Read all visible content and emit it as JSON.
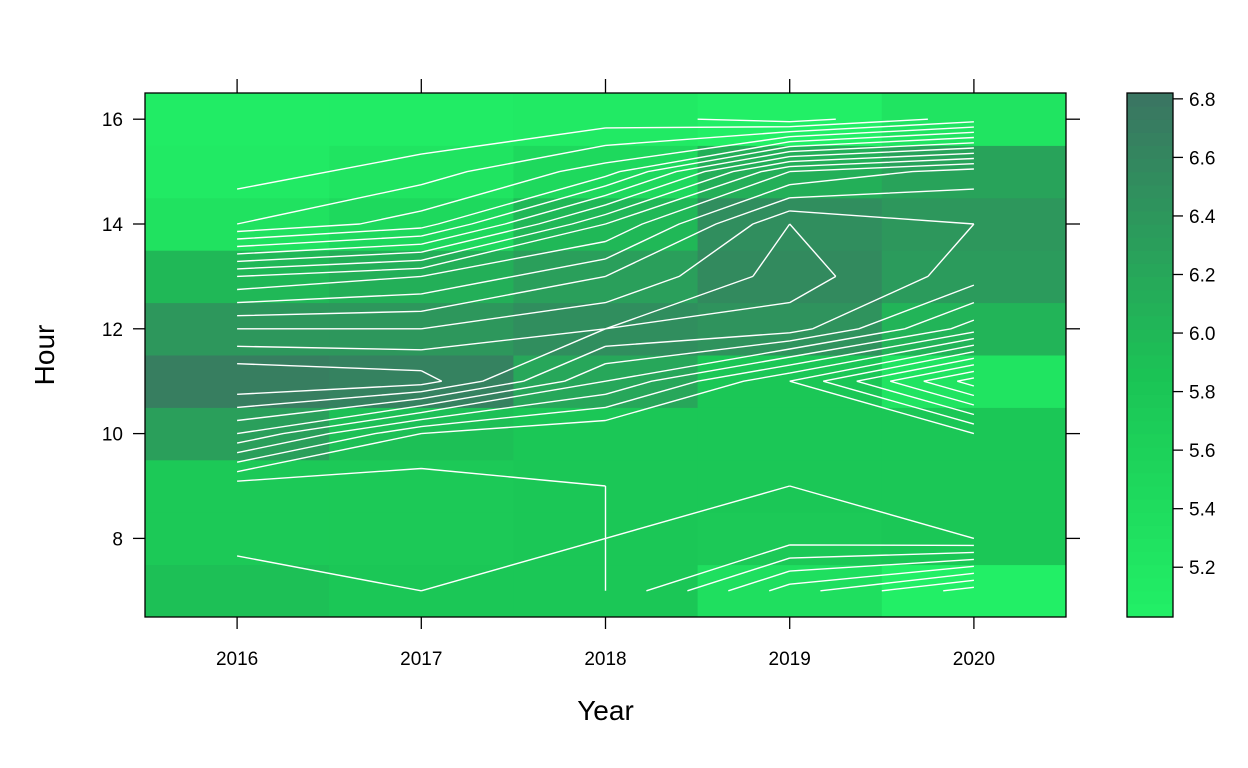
{
  "chart_data": {
    "type": "heatmap",
    "title": "",
    "xlabel": "Year",
    "ylabel": "Hour",
    "x_categories": [
      2016,
      2017,
      2018,
      2019,
      2020
    ],
    "y_categories": [
      7,
      8,
      9,
      10,
      11,
      12,
      13,
      14,
      15,
      16
    ],
    "x_tick_labels": [
      "2016",
      "2017",
      "2018",
      "2019",
      "2020"
    ],
    "y_tick_labels": [
      "8",
      "10",
      "12",
      "14",
      "16"
    ],
    "y_tick_values": [
      8,
      10,
      12,
      14,
      16
    ],
    "xlim": [
      2015.5,
      2020.5
    ],
    "ylim": [
      6.5,
      16.5
    ],
    "values_by_hour": [
      [
        5.9,
        5.8,
        5.8,
        5.35,
        5.05
      ],
      [
        5.75,
        5.75,
        5.8,
        5.75,
        5.8
      ],
      [
        5.75,
        5.75,
        5.8,
        5.8,
        5.8
      ],
      [
        6.3,
        5.9,
        5.8,
        5.8,
        5.8
      ],
      [
        6.7,
        6.65,
        6.2,
        5.8,
        5.25
      ],
      [
        6.4,
        6.4,
        6.5,
        6.45,
        6.05
      ],
      [
        6.0,
        6.1,
        6.3,
        6.55,
        6.35
      ],
      [
        5.3,
        5.45,
        6.0,
        6.5,
        6.4
      ],
      [
        5.15,
        5.25,
        5.45,
        6.1,
        6.25
      ],
      [
        5.1,
        5.1,
        5.15,
        5.05,
        5.25
      ]
    ],
    "colorbar": {
      "min": 5.03,
      "max": 6.82,
      "tick_values": [
        5.2,
        5.4,
        5.6,
        5.8,
        6.0,
        6.2,
        6.4,
        6.6,
        6.8
      ],
      "tick_labels": [
        "5.2",
        "5.4",
        "5.6",
        "5.8",
        "6.0",
        "6.2",
        "6.4",
        "6.6",
        "6.8"
      ],
      "low_color": "#22f066",
      "mid_color": "#1bc455",
      "high_color": "#3b7462"
    },
    "contour_color": "#ffffff",
    "grid": false,
    "legend": "right colorbar"
  }
}
